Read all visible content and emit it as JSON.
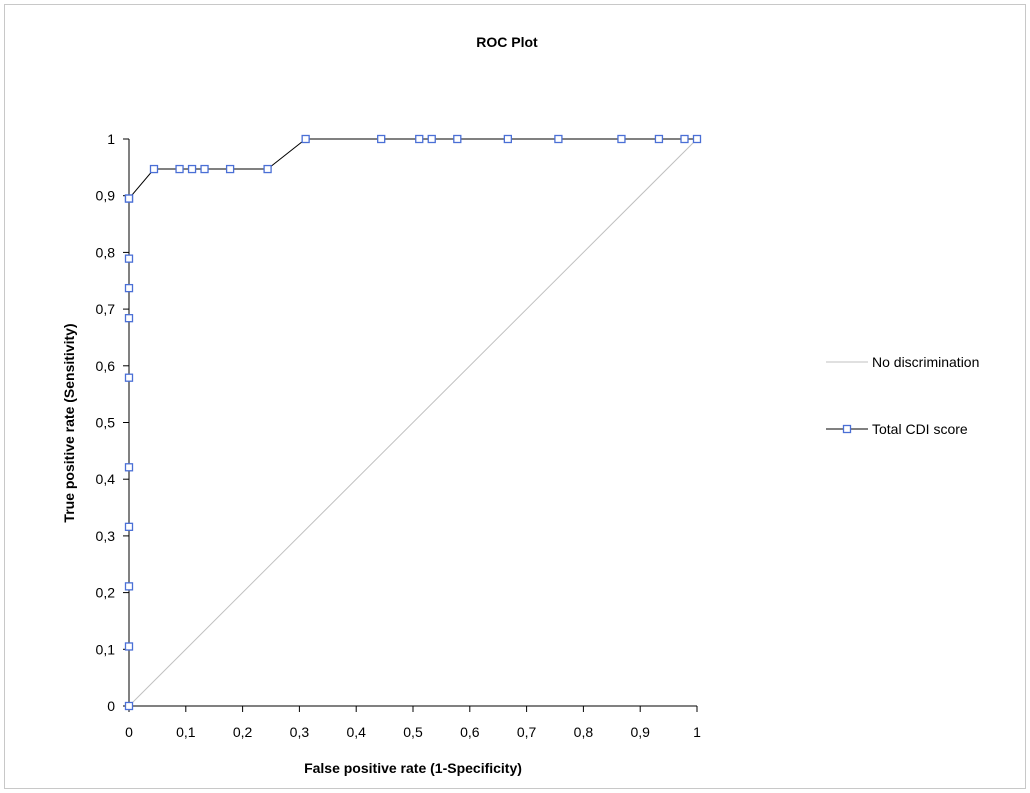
{
  "chart_data": {
    "type": "line",
    "title": "ROC Plot",
    "xlabel": "False positive rate (1-Specificity)",
    "ylabel": "True positive rate (Sensitivity)",
    "xlim": [
      0,
      1
    ],
    "ylim": [
      0,
      1
    ],
    "x_ticks": [
      "0",
      "0,1",
      "0,2",
      "0,3",
      "0,4",
      "0,5",
      "0,6",
      "0,7",
      "0,8",
      "0,9",
      "1"
    ],
    "y_ticks": [
      "0",
      "0,1",
      "0,2",
      "0,3",
      "0,4",
      "0,5",
      "0,6",
      "0,7",
      "0,8",
      "0,9",
      "1"
    ],
    "grid": false,
    "legend_position": "right",
    "series": [
      {
        "name": "No discrimination",
        "color": "#c0c0c0",
        "marker": "none",
        "x": [
          0,
          1
        ],
        "y": [
          0,
          1
        ]
      },
      {
        "name": "Total CDI score",
        "color": "#000000",
        "marker": "square",
        "marker_color": "#4a6fd6",
        "x": [
          0,
          0,
          0,
          0,
          0,
          0,
          0,
          0,
          0,
          0,
          0,
          0.044,
          0.089,
          0.111,
          0.133,
          0.178,
          0.244,
          0.311,
          0.444,
          0.511,
          0.533,
          0.578,
          0.667,
          0.756,
          0.867,
          0.933,
          0.978,
          1
        ],
        "y": [
          0,
          0.105,
          0.211,
          0.316,
          0.421,
          0.579,
          0.684,
          0.737,
          0.789,
          0.895,
          0.895,
          0.947,
          0.947,
          0.947,
          0.947,
          0.947,
          0.947,
          1,
          1,
          1,
          1,
          1,
          1,
          1,
          1,
          1,
          1,
          1
        ]
      }
    ]
  }
}
